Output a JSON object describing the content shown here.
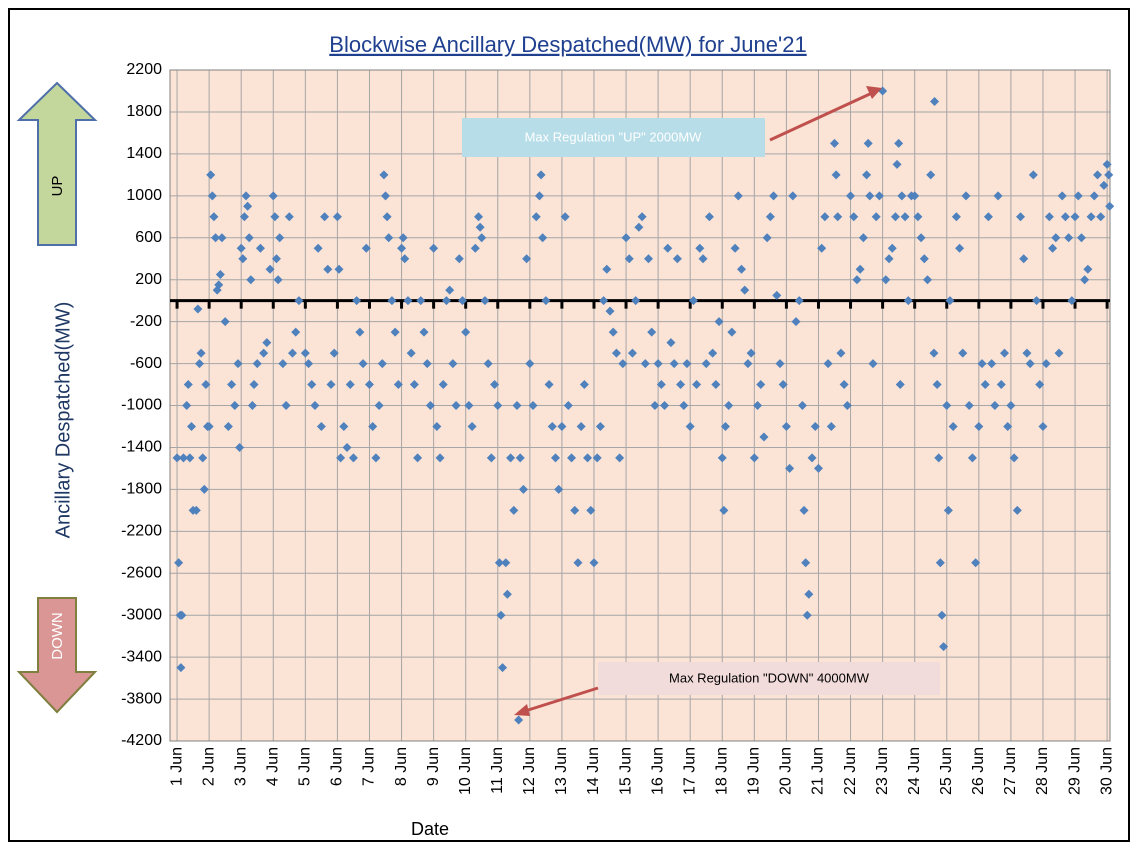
{
  "chart_data": {
    "type": "scatter",
    "title": "Blockwise Ancillary Despatched(MW) for  June'21",
    "y_label": "Ancillary Despatched(MW)",
    "x_label": "Date",
    "arrow_labels": [
      "UP",
      "DOWN"
    ],
    "annotations": [
      "Max Regulation \"UP\" 2000MW",
      "Max Regulation \"DOWN\" 4000MW"
    ],
    "hline": 0,
    "grid": true,
    "color": "#4f81bd",
    "xlim": [
      0.78,
      30.09
    ],
    "ylim": [
      -4200,
      2200
    ],
    "yticks": [
      -4200,
      -3800,
      -3400,
      -3000,
      -2600,
      -2200,
      -1800,
      -1400,
      -1000,
      -600,
      -200,
      200,
      600,
      1000,
      1400,
      1800,
      2200
    ],
    "xticks": [
      {
        "value": 1,
        "label": "1 Jun"
      },
      {
        "value": 2,
        "label": "2 Jun"
      },
      {
        "value": 3,
        "label": "3 Jun"
      },
      {
        "value": 4,
        "label": "4 Jun"
      },
      {
        "value": 5,
        "label": "5 Jun"
      },
      {
        "value": 6,
        "label": "6 Jun"
      },
      {
        "value": 7,
        "label": "7 Jun"
      },
      {
        "value": 8,
        "label": "8 Jun"
      },
      {
        "value": 9,
        "label": "9 Jun"
      },
      {
        "value": 10,
        "label": "10 Jun"
      },
      {
        "value": 11,
        "label": "11 Jun"
      },
      {
        "value": 12,
        "label": "12 Jun"
      },
      {
        "value": 13,
        "label": "13 Jun"
      },
      {
        "value": 14,
        "label": "14 Jun"
      },
      {
        "value": 15,
        "label": "15 Jun"
      },
      {
        "value": 16,
        "label": "16 Jun"
      },
      {
        "value": 17,
        "label": "17 Jun"
      },
      {
        "value": 18,
        "label": "18 Jun"
      },
      {
        "value": 19,
        "label": "19 Jun"
      },
      {
        "value": 20,
        "label": "20 Jun"
      },
      {
        "value": 21,
        "label": "21 Jun"
      },
      {
        "value": 22,
        "label": "22 Jun"
      },
      {
        "value": 23,
        "label": "23 Jun"
      },
      {
        "value": 24,
        "label": "24 Jun"
      },
      {
        "value": 25,
        "label": "25 Jun"
      },
      {
        "value": 26,
        "label": "26 Jun"
      },
      {
        "value": 27,
        "label": "27 Jun"
      },
      {
        "value": 28,
        "label": "28 Jun"
      },
      {
        "value": 29,
        "label": "29 Jun"
      },
      {
        "value": 30,
        "label": "30 Jun"
      }
    ],
    "x": [
      1.0,
      1.05,
      1.1,
      1.12,
      1.15,
      1.2,
      1.3,
      1.35,
      1.4,
      1.45,
      1.5,
      1.6,
      1.65,
      1.7,
      1.75,
      1.8,
      1.85,
      1.9,
      1.95,
      2.0,
      2.05,
      2.1,
      2.15,
      2.2,
      2.25,
      2.3,
      2.35,
      2.4,
      2.5,
      2.6,
      2.7,
      2.8,
      2.9,
      2.95,
      3.0,
      3.05,
      3.1,
      3.15,
      3.2,
      3.25,
      3.3,
      3.35,
      3.4,
      3.5,
      3.6,
      3.7,
      3.8,
      3.9,
      4.0,
      4.05,
      4.1,
      4.15,
      4.2,
      4.3,
      4.4,
      4.5,
      4.6,
      4.7,
      4.8,
      5.0,
      5.1,
      5.2,
      5.3,
      5.4,
      5.5,
      5.6,
      5.7,
      5.8,
      5.9,
      6.0,
      6.05,
      6.1,
      6.2,
      6.3,
      6.4,
      6.5,
      6.6,
      6.7,
      6.8,
      6.9,
      7.0,
      7.1,
      7.2,
      7.3,
      7.4,
      7.45,
      7.5,
      7.55,
      7.6,
      7.7,
      7.8,
      7.9,
      8.0,
      8.05,
      8.1,
      8.2,
      8.3,
      8.4,
      8.5,
      8.6,
      8.7,
      8.8,
      8.9,
      9.0,
      9.1,
      9.2,
      9.3,
      9.4,
      9.5,
      9.6,
      9.7,
      9.8,
      9.9,
      10.0,
      10.1,
      10.2,
      10.3,
      10.4,
      10.45,
      10.5,
      10.6,
      10.7,
      10.8,
      10.9,
      11.0,
      11.05,
      11.1,
      11.15,
      11.65,
      11.25,
      11.3,
      11.4,
      11.5,
      11.6,
      11.7,
      11.8,
      11.9,
      12.0,
      12.1,
      12.2,
      12.3,
      12.35,
      12.4,
      12.5,
      12.6,
      12.7,
      12.8,
      12.9,
      13.0,
      13.1,
      13.2,
      13.3,
      13.4,
      13.5,
      13.6,
      13.7,
      13.8,
      13.9,
      14.0,
      14.1,
      14.2,
      14.3,
      14.4,
      14.5,
      14.6,
      14.7,
      14.8,
      14.9,
      15.0,
      15.1,
      15.2,
      15.3,
      15.4,
      15.5,
      15.6,
      15.7,
      15.8,
      15.9,
      16.0,
      16.1,
      16.2,
      16.3,
      16.4,
      16.5,
      16.6,
      16.7,
      16.8,
      16.9,
      17.0,
      17.1,
      17.2,
      17.3,
      17.4,
      17.5,
      17.6,
      17.7,
      17.8,
      17.9,
      18.0,
      18.05,
      18.1,
      18.2,
      18.3,
      18.4,
      18.5,
      18.6,
      18.7,
      18.8,
      18.9,
      19.0,
      19.1,
      19.2,
      19.3,
      19.4,
      19.5,
      19.6,
      19.7,
      19.8,
      19.9,
      20.0,
      20.1,
      20.2,
      20.3,
      20.4,
      20.5,
      20.55,
      20.6,
      20.65,
      20.7,
      20.8,
      20.9,
      21.0,
      21.1,
      21.2,
      21.3,
      21.4,
      21.5,
      21.55,
      21.6,
      21.7,
      21.8,
      21.9,
      22.0,
      22.1,
      22.2,
      22.3,
      22.4,
      22.5,
      22.55,
      22.6,
      22.7,
      22.8,
      22.9,
      23.55,
      23.1,
      23.2,
      23.3,
      23.4,
      23.45,
      23.5,
      23.0,
      23.6,
      23.7,
      23.8,
      23.9,
      24.0,
      24.1,
      24.2,
      24.3,
      24.4,
      24.5,
      24.6,
      24.7,
      24.75,
      24.8,
      24.85,
      24.9,
      24.62,
      25.0,
      25.05,
      25.1,
      25.2,
      25.3,
      25.4,
      25.5,
      25.6,
      25.7,
      25.8,
      25.9,
      26.0,
      26.1,
      26.2,
      26.3,
      26.4,
      26.5,
      26.6,
      26.7,
      26.8,
      26.9,
      27.0,
      27.1,
      27.2,
      27.3,
      27.4,
      27.5,
      27.6,
      27.7,
      27.8,
      27.9,
      28.0,
      28.1,
      28.2,
      28.3,
      28.4,
      28.5,
      28.6,
      28.7,
      28.8,
      28.9,
      29.0,
      29.1,
      29.2,
      29.3,
      29.4,
      29.5,
      29.6,
      29.7,
      29.8,
      29.9,
      30.0,
      30.05,
      30.08
    ],
    "values": [
      -1500,
      -2500,
      -3000,
      -3500,
      -3000,
      -1500,
      -1000,
      -800,
      -1500,
      -1200,
      -2000,
      -2000,
      -80,
      -600,
      -500,
      -1500,
      -1800,
      -800,
      -1200,
      -1200,
      1200,
      1000,
      800,
      600,
      100,
      150,
      250,
      600,
      -200,
      -1200,
      -800,
      -1000,
      -600,
      -1400,
      500,
      400,
      800,
      1000,
      900,
      600,
      200,
      -1000,
      -800,
      -600,
      500,
      -500,
      -400,
      300,
      1000,
      800,
      400,
      200,
      600,
      -600,
      -1000,
      800,
      -500,
      -300,
      0,
      -500,
      -600,
      -800,
      -1000,
      500,
      -1200,
      800,
      300,
      -800,
      -500,
      800,
      300,
      -1500,
      -1200,
      -1400,
      -800,
      -1500,
      0,
      -300,
      -600,
      500,
      -800,
      -1200,
      -1500,
      -1000,
      -600,
      1200,
      1000,
      800,
      600,
      0,
      -300,
      -800,
      500,
      600,
      400,
      0,
      -500,
      -800,
      -1500,
      0,
      -300,
      -600,
      -1000,
      500,
      -1200,
      -1500,
      -800,
      0,
      100,
      -600,
      -1000,
      400,
      0,
      -300,
      -1000,
      -1200,
      500,
      800,
      700,
      600,
      0,
      -600,
      -1500,
      -800,
      -1000,
      -2500,
      -3000,
      -3500,
      -4000,
      -2500,
      -2800,
      -1500,
      -2000,
      -1000,
      -1500,
      -1800,
      400,
      -600,
      -1000,
      800,
      1000,
      1200,
      600,
      0,
      -800,
      -1200,
      -1500,
      -1800,
      -1200,
      800,
      -1000,
      -1500,
      -2000,
      -2500,
      -1200,
      -800,
      -1500,
      -2000,
      -2500,
      -1500,
      -1200,
      0,
      300,
      -100,
      -300,
      -500,
      -1500,
      -600,
      600,
      400,
      -500,
      0,
      700,
      800,
      -600,
      400,
      -300,
      -1000,
      -600,
      -800,
      -1000,
      500,
      -400,
      -600,
      400,
      -800,
      -1000,
      -600,
      -1200,
      0,
      -800,
      500,
      400,
      -600,
      800,
      -500,
      -800,
      -200,
      -1500,
      -2000,
      -1200,
      -1000,
      -300,
      500,
      1000,
      300,
      100,
      -600,
      -500,
      -1500,
      -1000,
      -800,
      -1300,
      600,
      800,
      1000,
      50,
      -600,
      -800,
      -1200,
      -1600,
      1000,
      -200,
      0,
      -1000,
      -2000,
      -2500,
      -3000,
      -2800,
      -1500,
      -1200,
      -1600,
      500,
      800,
      -600,
      -1200,
      1500,
      1200,
      800,
      -500,
      -800,
      -1000,
      1000,
      800,
      200,
      300,
      600,
      1200,
      1500,
      1000,
      -600,
      800,
      1000,
      -800,
      200,
      400,
      500,
      800,
      1300,
      1500,
      2000,
      1000,
      800,
      0,
      1000,
      1000,
      800,
      600,
      400,
      200,
      1200,
      -500,
      -800,
      -1500,
      -2500,
      -3000,
      -3300,
      1900,
      -1000,
      -2000,
      0,
      -1200,
      800,
      500,
      -500,
      1000,
      -1000,
      -1500,
      -2500,
      -1200,
      -600,
      -800,
      800,
      -600,
      -1000,
      1000,
      -800,
      -500,
      -1200,
      -1000,
      -1500,
      -2000,
      800,
      400,
      -500,
      -600,
      1200,
      0,
      -800,
      -1200,
      -600,
      800,
      500,
      600,
      -500,
      1000,
      800,
      600,
      0,
      800,
      1000,
      600,
      200,
      300,
      800,
      1000,
      1200,
      800,
      1100,
      1300,
      1200,
      900
    ]
  }
}
